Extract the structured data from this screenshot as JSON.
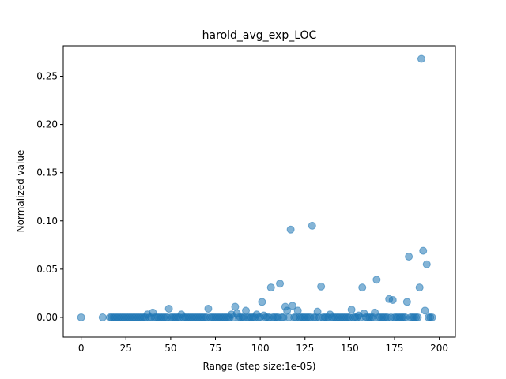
{
  "chart_data": {
    "type": "scatter",
    "title": "harold_avg_exp_LOC",
    "xlabel": "Range (step size:1e-05)",
    "ylabel": "Normalized value",
    "xlim": [
      -10,
      209
    ],
    "ylim": [
      -0.0205,
      0.2815
    ],
    "xticks": [
      0,
      25,
      50,
      75,
      100,
      125,
      150,
      175,
      200
    ],
    "xtick_labels": [
      "0",
      "25",
      "50",
      "75",
      "100",
      "125",
      "150",
      "175",
      "200"
    ],
    "yticks": [
      0.0,
      0.05,
      0.1,
      0.15,
      0.2,
      0.25
    ],
    "ytick_labels": [
      "0.00",
      "0.05",
      "0.10",
      "0.15",
      "0.20",
      "0.25"
    ],
    "grid": false,
    "marker_color": "#1f77b4",
    "marker_alpha": 0.55,
    "points": [
      [
        0,
        0.0
      ],
      [
        12,
        0.0
      ],
      [
        16,
        0.0
      ],
      [
        17,
        0.0
      ],
      [
        18,
        0.0
      ],
      [
        19,
        0.0
      ],
      [
        20,
        0.0
      ],
      [
        21,
        0.0
      ],
      [
        22,
        0.0
      ],
      [
        23,
        0.0
      ],
      [
        24,
        0.0
      ],
      [
        25,
        0.0
      ],
      [
        26,
        0.0
      ],
      [
        27,
        0.0
      ],
      [
        28,
        0.0
      ],
      [
        29,
        0.0
      ],
      [
        30,
        0.0
      ],
      [
        31,
        0.0
      ],
      [
        32,
        0.0
      ],
      [
        33,
        0.0
      ],
      [
        34,
        0.0
      ],
      [
        35,
        0.0
      ],
      [
        36,
        0.0
      ],
      [
        37,
        0.003
      ],
      [
        38,
        0.0
      ],
      [
        39,
        0.0
      ],
      [
        40,
        0.005
      ],
      [
        41,
        0.0
      ],
      [
        42,
        0.0
      ],
      [
        43,
        0.0
      ],
      [
        44,
        0.0
      ],
      [
        45,
        0.0
      ],
      [
        46,
        0.0
      ],
      [
        47,
        0.0
      ],
      [
        48,
        0.0
      ],
      [
        49,
        0.009
      ],
      [
        50,
        0.0
      ],
      [
        51,
        0.0
      ],
      [
        52,
        0.0
      ],
      [
        53,
        0.0
      ],
      [
        54,
        0.0
      ],
      [
        55,
        0.0
      ],
      [
        56,
        0.003
      ],
      [
        57,
        0.0
      ],
      [
        58,
        0.0
      ],
      [
        59,
        0.0
      ],
      [
        60,
        0.0
      ],
      [
        61,
        0.0
      ],
      [
        62,
        0.0
      ],
      [
        63,
        0.0
      ],
      [
        64,
        0.0
      ],
      [
        65,
        0.0
      ],
      [
        66,
        0.0
      ],
      [
        67,
        0.0
      ],
      [
        68,
        0.0
      ],
      [
        69,
        0.0
      ],
      [
        70,
        0.0
      ],
      [
        71,
        0.009
      ],
      [
        72,
        0.0
      ],
      [
        73,
        0.0
      ],
      [
        74,
        0.0
      ],
      [
        75,
        0.0
      ],
      [
        76,
        0.0
      ],
      [
        77,
        0.0
      ],
      [
        78,
        0.0
      ],
      [
        79,
        0.0
      ],
      [
        80,
        0.0
      ],
      [
        81,
        0.0
      ],
      [
        82,
        0.0
      ],
      [
        83,
        0.0
      ],
      [
        84,
        0.003
      ],
      [
        85,
        0.0
      ],
      [
        86,
        0.011
      ],
      [
        87,
        0.004
      ],
      [
        88,
        0.0
      ],
      [
        89,
        0.0
      ],
      [
        90,
        0.0
      ],
      [
        91,
        0.0
      ],
      [
        92,
        0.007
      ],
      [
        93,
        0.0
      ],
      [
        94,
        0.0
      ],
      [
        95,
        0.0
      ],
      [
        96,
        0.0
      ],
      [
        97,
        0.0
      ],
      [
        98,
        0.003
      ],
      [
        99,
        0.0
      ],
      [
        100,
        0.0
      ],
      [
        101,
        0.016
      ],
      [
        102,
        0.002
      ],
      [
        103,
        0.0
      ],
      [
        104,
        0.0
      ],
      [
        105,
        0.0
      ],
      [
        106,
        0.031
      ],
      [
        107,
        0.0
      ],
      [
        108,
        0.0
      ],
      [
        109,
        0.0
      ],
      [
        110,
        0.0
      ],
      [
        111,
        0.035
      ],
      [
        112,
        0.0
      ],
      [
        113,
        0.0
      ],
      [
        114,
        0.011
      ],
      [
        115,
        0.007
      ],
      [
        116,
        0.0
      ],
      [
        117,
        0.091
      ],
      [
        118,
        0.012
      ],
      [
        119,
        0.0
      ],
      [
        120,
        0.0
      ],
      [
        121,
        0.007
      ],
      [
        122,
        0.0
      ],
      [
        123,
        0.0
      ],
      [
        124,
        0.0
      ],
      [
        125,
        0.0
      ],
      [
        126,
        0.0
      ],
      [
        127,
        0.0
      ],
      [
        128,
        0.0
      ],
      [
        129,
        0.095
      ],
      [
        130,
        0.0
      ],
      [
        131,
        0.0
      ],
      [
        132,
        0.006
      ],
      [
        133,
        0.0
      ],
      [
        134,
        0.032
      ],
      [
        135,
        0.0
      ],
      [
        136,
        0.0
      ],
      [
        137,
        0.0
      ],
      [
        138,
        0.0
      ],
      [
        139,
        0.003
      ],
      [
        140,
        0.0
      ],
      [
        141,
        0.0
      ],
      [
        142,
        0.0
      ],
      [
        143,
        0.0
      ],
      [
        144,
        0.0
      ],
      [
        145,
        0.0
      ],
      [
        146,
        0.0
      ],
      [
        147,
        0.0
      ],
      [
        148,
        0.0
      ],
      [
        149,
        0.0
      ],
      [
        150,
        0.0
      ],
      [
        151,
        0.008
      ],
      [
        152,
        0.0
      ],
      [
        153,
        0.0
      ],
      [
        154,
        0.0
      ],
      [
        155,
        0.002
      ],
      [
        156,
        0.0
      ],
      [
        157,
        0.031
      ],
      [
        158,
        0.004
      ],
      [
        159,
        0.0
      ],
      [
        160,
        0.0
      ],
      [
        161,
        0.0
      ],
      [
        162,
        0.0
      ],
      [
        163,
        0.0
      ],
      [
        164,
        0.005
      ],
      [
        165,
        0.039
      ],
      [
        166,
        0.0
      ],
      [
        167,
        0.0
      ],
      [
        168,
        0.0
      ],
      [
        169,
        0.0
      ],
      [
        170,
        0.0
      ],
      [
        171,
        0.0
      ],
      [
        172,
        0.019
      ],
      [
        173,
        0.0
      ],
      [
        174,
        0.018
      ],
      [
        175,
        0.0
      ],
      [
        176,
        0.0
      ],
      [
        177,
        0.0
      ],
      [
        178,
        0.0
      ],
      [
        179,
        0.0
      ],
      [
        180,
        0.0
      ],
      [
        181,
        0.0
      ],
      [
        182,
        0.016
      ],
      [
        183,
        0.063
      ],
      [
        184,
        0.0
      ],
      [
        185,
        0.0
      ],
      [
        186,
        0.0
      ],
      [
        187,
        0.0
      ],
      [
        188,
        0.0
      ],
      [
        189,
        0.031
      ],
      [
        190,
        0.268
      ],
      [
        191,
        0.069
      ],
      [
        192,
        0.007
      ],
      [
        193,
        0.055
      ],
      [
        194,
        0.0
      ],
      [
        195,
        0.0
      ],
      [
        196,
        0.0
      ]
    ]
  }
}
